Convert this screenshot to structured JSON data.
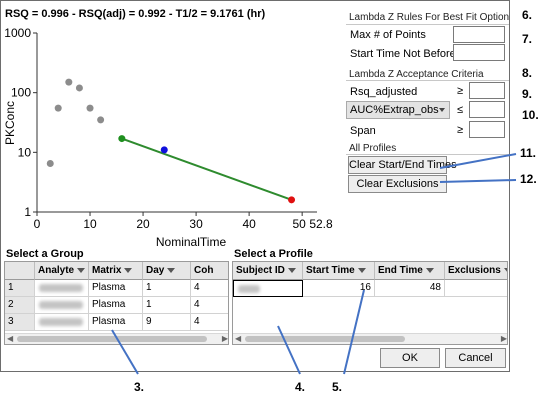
{
  "plot": {
    "title": "RSQ = 0.996 - RSQ(adj) = 0.992 - T1/2 = 9.1761 (hr)",
    "ylabel": "PKConc",
    "xlabel": "NominalTime",
    "y_ticks": [
      "1000",
      "100",
      "10",
      "1"
    ],
    "x_ticks": [
      "0",
      "10",
      "20",
      "30",
      "40",
      "50",
      "52.8"
    ]
  },
  "chart_data": {
    "type": "scatter",
    "title": "RSQ = 0.996 - RSQ(adj) = 0.992 - T1/2 = 9.1761 (hr)",
    "xlabel": "NominalTime",
    "ylabel": "PKConc",
    "xlim": [
      0,
      52.8
    ],
    "ylim": [
      1,
      1000
    ],
    "y_scale": "log",
    "grid": false,
    "points": [
      {
        "x": 2.5,
        "y": 6.5,
        "color": "#8c8c8c"
      },
      {
        "x": 4,
        "y": 55,
        "color": "#8c8c8c"
      },
      {
        "x": 6,
        "y": 150,
        "color": "#8c8c8c"
      },
      {
        "x": 8,
        "y": 120,
        "color": "#8c8c8c"
      },
      {
        "x": 10,
        "y": 55,
        "color": "#8c8c8c"
      },
      {
        "x": 12,
        "y": 35,
        "color": "#8c8c8c"
      },
      {
        "x": 16,
        "y": 17,
        "color": "#1e8f1e"
      },
      {
        "x": 24,
        "y": 11,
        "color": "#1010dd"
      },
      {
        "x": 48,
        "y": 1.6,
        "color": "#e01010"
      }
    ],
    "fit_line": {
      "x": [
        16,
        48
      ],
      "y": [
        17,
        1.6
      ],
      "color": "#2e8b2e"
    }
  },
  "lambda_rules": {
    "heading": "Lambda Z Rules For Best Fit Option",
    "max_points_label": "Max # of Points",
    "max_points_value": "",
    "start_time_label": "Start Time Not Before",
    "start_time_value": ""
  },
  "acceptance": {
    "heading": "Lambda Z Acceptance Criteria",
    "rsq_label": "Rsq_adjusted",
    "rsq_op": "≥",
    "rsq_value": "",
    "auc_select": "AUC%Extrap_obs",
    "auc_op": "≤",
    "auc_value": "",
    "span_label": "Span",
    "span_op": "≥",
    "span_value": ""
  },
  "profiles": {
    "heading": "All Profiles",
    "clear_times_label": "Clear Start/End Times",
    "clear_exclusions_label": "Clear Exclusions"
  },
  "group_table": {
    "label": "Select a Group",
    "columns": [
      "Analyte",
      "Matrix",
      "Day",
      "Coh"
    ],
    "rows": [
      {
        "n": "1",
        "matrix": "Plasma",
        "day": "1",
        "coh": "4"
      },
      {
        "n": "2",
        "matrix": "Plasma",
        "day": "1",
        "coh": "4"
      },
      {
        "n": "3",
        "matrix": "Plasma",
        "day": "9",
        "coh": "4"
      }
    ]
  },
  "profile_table": {
    "label": "Select a Profile",
    "columns": [
      "Subject ID",
      "Start Time",
      "End Time",
      "Exclusions"
    ],
    "rows": [
      {
        "start": "16",
        "end": "48",
        "exclusions": ""
      }
    ]
  },
  "buttons": {
    "ok": "OK",
    "cancel": "Cancel"
  },
  "callouts": {
    "c6": "6.",
    "c7": "7.",
    "c8": "8.",
    "c9": "9.",
    "c10": "10.",
    "c11": "11.",
    "c12": "12.",
    "c3": "3.",
    "c4": "4.",
    "c5": "5."
  },
  "colors": {
    "callout_line": "#4472c4",
    "fit_line": "#2e8b2e"
  }
}
